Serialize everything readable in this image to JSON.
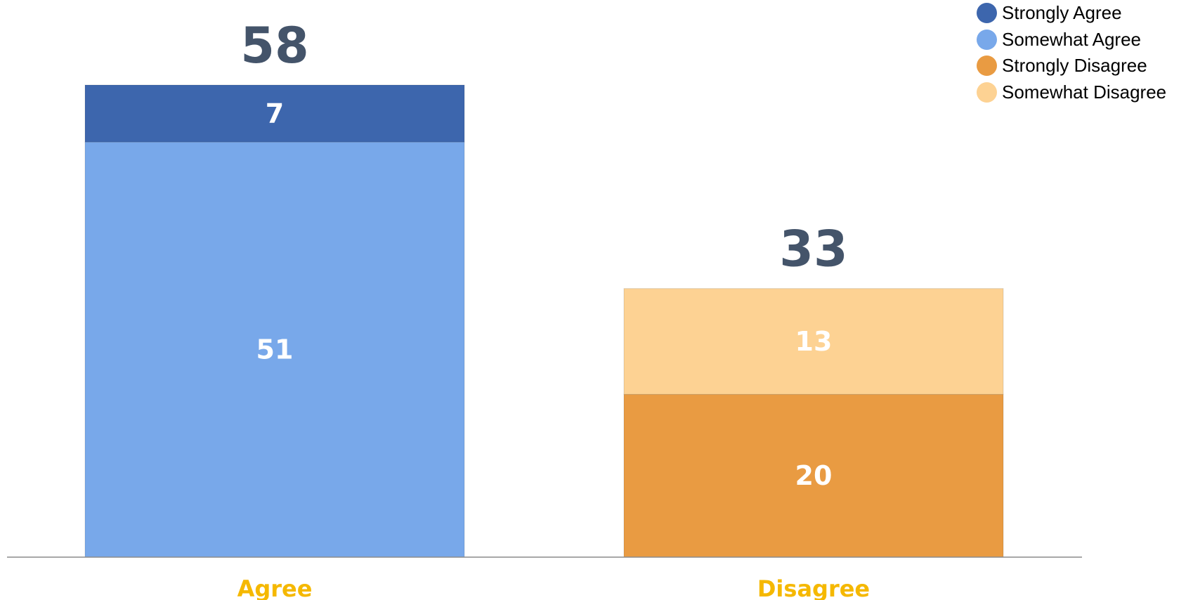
{
  "chart_data": {
    "type": "bar",
    "stacked": true,
    "categories": [
      "Agree",
      "Disagree"
    ],
    "category_label_color": "#F5B800",
    "totals": [
      58,
      33
    ],
    "total_label_color": "#44546A",
    "series": [
      {
        "name": "Strongly Agree",
        "values": [
          7,
          null
        ],
        "color": "#3D66AD"
      },
      {
        "name": "Somewhat Agree",
        "values": [
          51,
          null
        ],
        "color": "#78A8EA"
      },
      {
        "name": "Strongly Disagree",
        "values": [
          null,
          20
        ],
        "color": "#E99B42"
      },
      {
        "name": "Somewhat Disagree",
        "values": [
          null,
          13
        ],
        "color": "#FDD293"
      }
    ],
    "stack_order": [
      [
        "Somewhat Agree",
        "Strongly Agree"
      ],
      [
        "Strongly Disagree",
        "Somewhat Disagree"
      ]
    ],
    "legend_order": [
      "Strongly Agree",
      "Somewhat Agree",
      "Strongly Disagree",
      "Somewhat Disagree"
    ],
    "segment_label_color": "#FFFFFF",
    "ylim": [
      0,
      58
    ],
    "grid": false,
    "legend_position": "top-right"
  }
}
